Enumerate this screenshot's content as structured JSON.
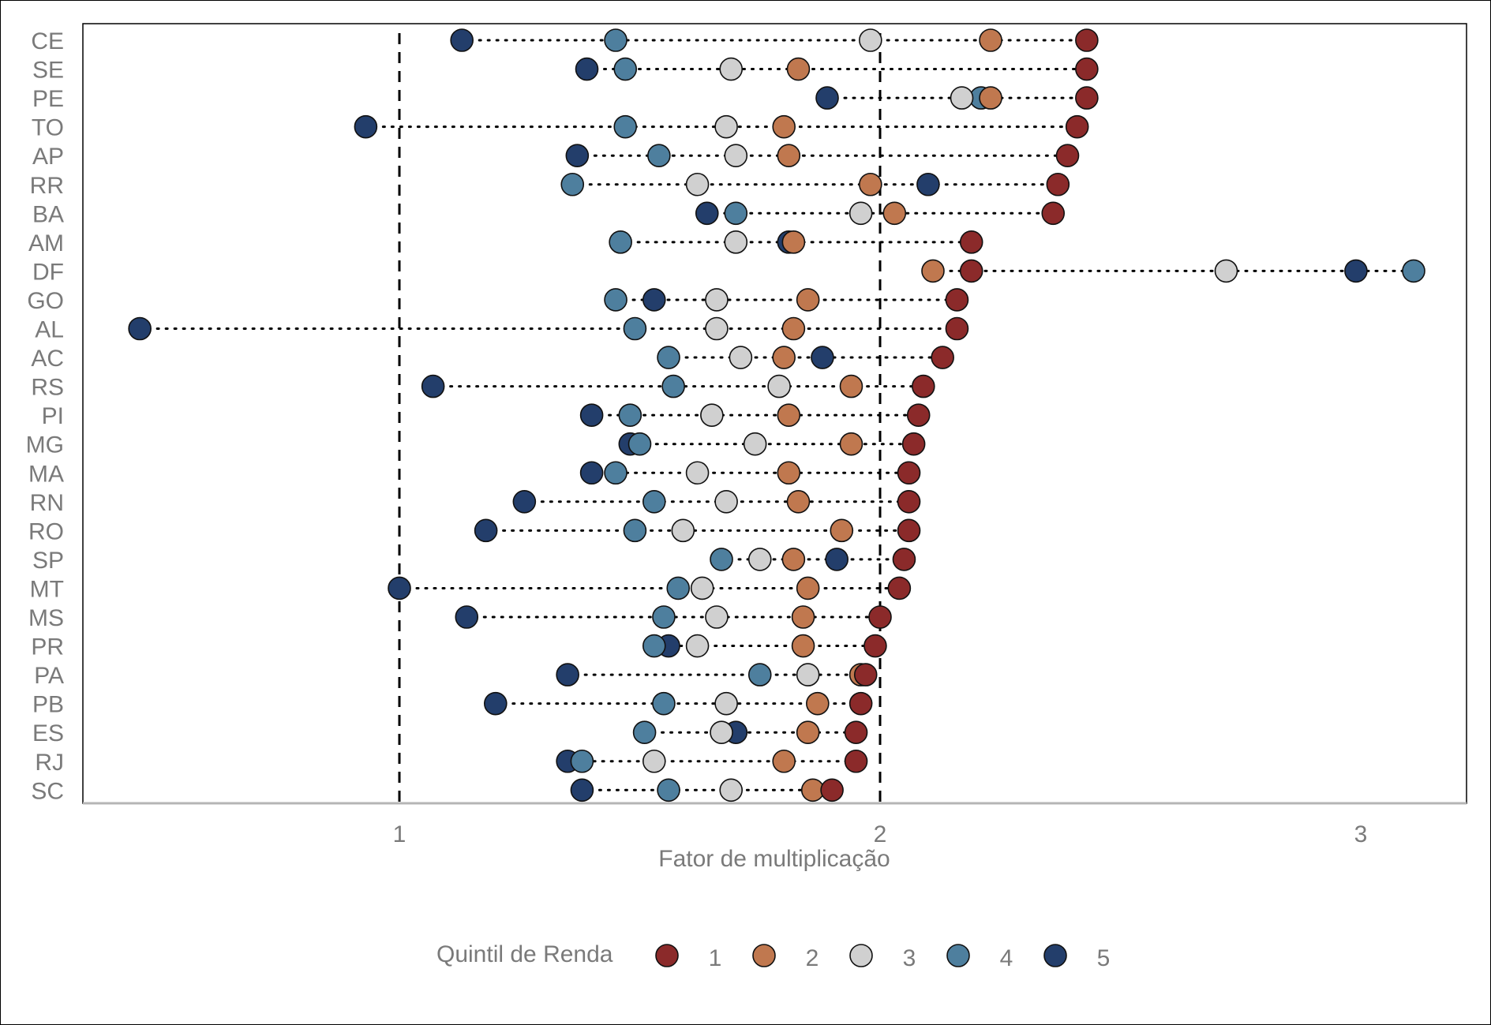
{
  "chart_data": {
    "type": "scatter",
    "subtype": "dot-plot",
    "title": "",
    "xlabel": "Fator de multiplicação",
    "ylabel": "",
    "xlim": [
      0.33,
      3.22
    ],
    "xticks": [
      1,
      2,
      3
    ],
    "reference_lines": [
      1,
      2
    ],
    "legend_title": "Quintil de Renda",
    "legend_position": "bottom",
    "grid": false,
    "categories": [
      "CE",
      "SE",
      "PE",
      "TO",
      "AP",
      "RR",
      "BA",
      "AM",
      "DF",
      "GO",
      "AL",
      "AC",
      "RS",
      "PI",
      "MG",
      "MA",
      "RN",
      "RO",
      "SP",
      "MT",
      "MS",
      "PR",
      "PA",
      "PB",
      "ES",
      "RJ",
      "SC"
    ],
    "series": [
      {
        "name": "1",
        "color": "#8b2a2a",
        "values": [
          2.43,
          2.43,
          2.43,
          2.41,
          2.39,
          2.37,
          2.36,
          2.19,
          2.19,
          2.16,
          2.16,
          2.13,
          2.09,
          2.08,
          2.07,
          2.06,
          2.06,
          2.06,
          2.05,
          2.04,
          2.0,
          1.99,
          1.97,
          1.96,
          1.95,
          1.95,
          1.9
        ]
      },
      {
        "name": "2",
        "color": "#c0784f",
        "values": [
          2.23,
          1.83,
          2.23,
          1.8,
          1.81,
          1.98,
          2.03,
          1.82,
          2.11,
          1.85,
          1.82,
          1.8,
          1.94,
          1.81,
          1.94,
          1.81,
          1.83,
          1.92,
          1.82,
          1.85,
          1.84,
          1.84,
          1.96,
          1.87,
          1.85,
          1.8,
          1.86
        ]
      },
      {
        "name": "3",
        "color": "#d0d0d0",
        "values": [
          1.98,
          1.69,
          2.17,
          1.68,
          1.7,
          1.62,
          1.96,
          1.7,
          2.72,
          1.66,
          1.66,
          1.71,
          1.79,
          1.65,
          1.74,
          1.62,
          1.68,
          1.59,
          1.75,
          1.63,
          1.66,
          1.62,
          1.85,
          1.68,
          1.67,
          1.53,
          1.69
        ]
      },
      {
        "name": "4",
        "color": "#4e7f9e",
        "values": [
          1.45,
          1.47,
          2.21,
          1.47,
          1.54,
          1.36,
          1.7,
          1.46,
          3.11,
          1.45,
          1.49,
          1.56,
          1.57,
          1.48,
          1.5,
          1.45,
          1.53,
          1.49,
          1.67,
          1.58,
          1.55,
          1.53,
          1.75,
          1.55,
          1.51,
          1.38,
          1.56
        ]
      },
      {
        "name": "5",
        "color": "#233e6b",
        "values": [
          1.13,
          1.39,
          1.89,
          0.93,
          1.37,
          2.1,
          1.64,
          1.81,
          2.99,
          1.53,
          0.46,
          1.88,
          1.07,
          1.4,
          1.48,
          1.4,
          1.26,
          1.18,
          1.91,
          1.0,
          1.14,
          1.56,
          1.35,
          1.2,
          1.7,
          1.35,
          1.38
        ]
      }
    ]
  }
}
